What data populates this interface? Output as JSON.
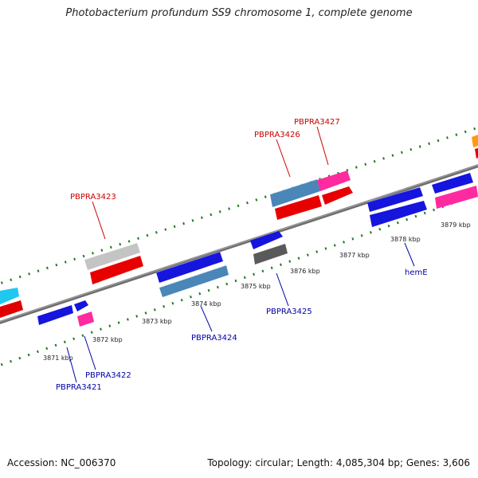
{
  "title": "Photobacterium profundum SS9 chromosome 1, complete genome",
  "footer": {
    "accession": "Accession: NC_006370",
    "info": "Topology: circular; Length: 4,085,304 bp; Genes: 3,606"
  },
  "colors": {
    "backbone": "#808080",
    "ticks": "#228b22",
    "label_upper": "#cc0000",
    "label_lower": "#0000aa"
  },
  "scale_ticks": [
    "3871 kbp",
    "3872 kbp",
    "3873 kbp",
    "3874 kbp",
    "3875 kbp",
    "3876 kbp",
    "3877 kbp",
    "3878 kbp",
    "3879 kbp"
  ],
  "genes": [
    {
      "name": "PBPRA3421",
      "strand": "lower",
      "color": "#0000dd"
    },
    {
      "name": "PBPRA3422",
      "strand": "lower",
      "color": "#ff2aa0"
    },
    {
      "name": "PBPRA3423",
      "strand": "upper",
      "color": "#bdbdbd"
    },
    {
      "name": "PBPRA3424",
      "strand": "lower",
      "color": "#4682b4"
    },
    {
      "name": "PBPRA3425",
      "strand": "lower",
      "color": "#555555"
    },
    {
      "name": "PBPRA3426",
      "strand": "upper",
      "color": "#4682b4"
    },
    {
      "name": "PBPRA3427",
      "strand": "upper",
      "color": "#ff2aa0"
    },
    {
      "name": "hemE",
      "strand": "lower",
      "color": "#0000dd"
    }
  ]
}
